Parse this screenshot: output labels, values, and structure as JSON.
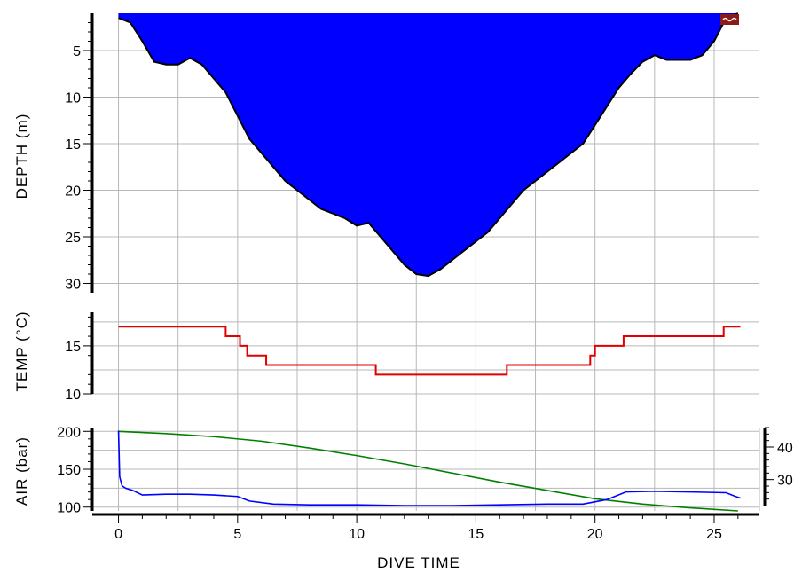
{
  "chart_data": [
    {
      "type": "area",
      "panel": "depth",
      "ylabel": "DEPTH (m)",
      "y_inverted": true,
      "ylim": [
        1,
        31
      ],
      "yticks": [
        5,
        10,
        15,
        20,
        25,
        30
      ],
      "xlim": [
        -1.1,
        26.9
      ],
      "grid": true,
      "fill_color": "#0000ff",
      "outline_color": "#000000",
      "series": [
        {
          "x": [
            0,
            0.5,
            1.0,
            1.5,
            2.0,
            2.5,
            3.0,
            3.5,
            4.0,
            4.5,
            5.0,
            5.5,
            6.0,
            6.5,
            7.0,
            7.5,
            8.0,
            8.5,
            9.0,
            9.5,
            10.0,
            10.5,
            11.0,
            11.5,
            12.0,
            12.5,
            13.0,
            13.5,
            14.0,
            14.5,
            15.0,
            15.5,
            16.0,
            16.5,
            17.0,
            17.5,
            18.0,
            18.5,
            19.0,
            19.5,
            20.0,
            20.5,
            21.0,
            21.5,
            22.0,
            22.5,
            23.0,
            23.5,
            24.0,
            24.5,
            25.0,
            25.5,
            26.0
          ],
          "y": [
            1.5,
            2.0,
            4.0,
            6.2,
            6.5,
            6.5,
            5.8,
            6.5,
            8.0,
            9.5,
            12.0,
            14.5,
            16.0,
            17.5,
            19.0,
            20.0,
            21.0,
            22.0,
            22.5,
            23.0,
            23.8,
            23.5,
            25.0,
            26.5,
            28.0,
            29.0,
            29.2,
            28.5,
            27.5,
            26.5,
            25.5,
            24.5,
            23.0,
            21.5,
            20.0,
            19.0,
            18.0,
            17.0,
            16.0,
            15.0,
            13.0,
            11.0,
            9.0,
            7.5,
            6.2,
            5.5,
            6.0,
            6.0,
            6.0,
            5.5,
            4.0,
            1.5,
            1.0
          ]
        }
      ]
    },
    {
      "type": "line",
      "panel": "temperature",
      "ylabel": "TEMP (°C)",
      "ylim": [
        10,
        18.5
      ],
      "yticks": [
        10,
        15
      ],
      "xlim": [
        -1.1,
        26.9
      ],
      "grid": true,
      "series": [
        {
          "step": true,
          "color": "#e00000",
          "x": [
            0,
            4.5,
            5.1,
            5.4,
            6.2,
            10.8,
            16.3,
            19.8,
            20.0,
            20.3,
            21.2,
            25.4,
            26.1
          ],
          "y": [
            17,
            16,
            15,
            14,
            13,
            12,
            13,
            14,
            15,
            15,
            16,
            17,
            17
          ]
        }
      ]
    },
    {
      "type": "line",
      "panel": "air",
      "ylabel": "AIR (bar)",
      "ylim": [
        95,
        205
      ],
      "yticks": [
        100,
        150,
        200
      ],
      "y2ticks": [
        30,
        40
      ],
      "xlim": [
        -1.1,
        26.9
      ],
      "xlabel": "DIVE TIME",
      "xticks": [
        0,
        5,
        10,
        15,
        20,
        25
      ],
      "grid": true,
      "series": [
        {
          "color": "#008000",
          "x": [
            0,
            2,
            4,
            6,
            8,
            10,
            12,
            14,
            16,
            18,
            20,
            22,
            24,
            26
          ],
          "y": [
            200,
            197,
            193,
            187,
            178,
            168,
            157,
            145,
            133,
            122,
            111,
            104,
            99,
            95
          ]
        },
        {
          "color": "#0000ff",
          "x": [
            0,
            0.05,
            0.15,
            0.3,
            0.6,
            1.0,
            2.0,
            3.0,
            4.0,
            5.0,
            5.5,
            6.5,
            8,
            10,
            12,
            14,
            16,
            18,
            19.5,
            20.5,
            21.3,
            22.5,
            24,
            25.5,
            25.9,
            26.1
          ],
          "y": [
            201,
            140,
            128,
            125,
            122,
            116,
            117,
            117,
            116,
            114,
            108,
            104,
            103,
            103,
            102,
            102,
            103,
            104,
            104,
            110,
            120,
            121,
            120,
            119,
            114,
            112
          ]
        }
      ]
    }
  ]
}
